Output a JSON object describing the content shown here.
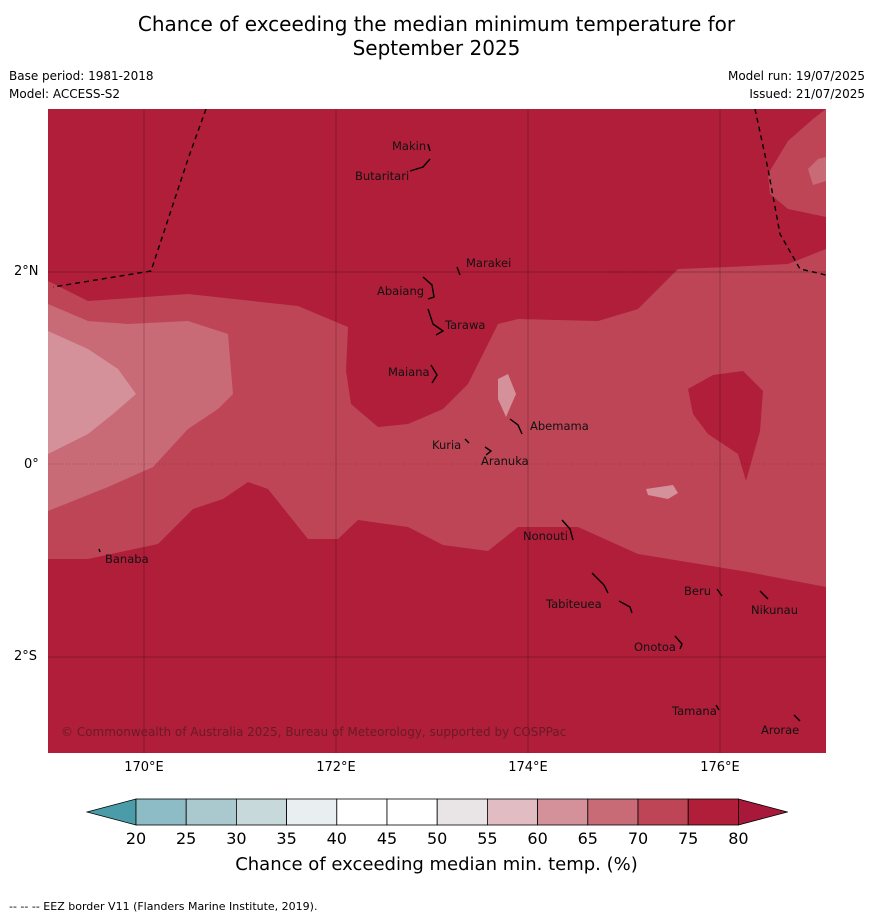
{
  "title_line1": "Chance of exceeding the median minimum temperature for",
  "title_line2": "September 2025",
  "meta": {
    "base_period": "Base period: 1981-2018",
    "model": "Model: ACCESS-S2",
    "model_run": "Model run: 19/07/2025",
    "issued": "Issued: 21/07/2025"
  },
  "axes": {
    "lat_labels": [
      "2°N",
      "0°",
      "2°S"
    ],
    "lon_labels": [
      "170°E",
      "172°E",
      "174°E",
      "176°E"
    ]
  },
  "places": [
    "Makin",
    "Butaritari",
    "Marakei",
    "Abaiang",
    "Tarawa",
    "Maiana",
    "Abemama",
    "Kuria",
    "Aranuka",
    "Nonouti",
    "Banaba",
    "Beru",
    "Nikunau",
    "Tabiteuea",
    "Onotoa",
    "Tamana",
    "Arorae"
  ],
  "copyright": "© Commonwealth of Australia 2025, Bureau of Meteorology, supported by COSPPac",
  "colorbar": {
    "labels": [
      "20",
      "25",
      "30",
      "35",
      "40",
      "45",
      "50",
      "55",
      "60",
      "65",
      "70",
      "75",
      "80"
    ],
    "colors": [
      "#6aacba",
      "#8dbcc7",
      "#aac9cf",
      "#c8d9dc",
      "#e9eef0",
      "#ffffff",
      "#ffffff",
      "#e9e5e6",
      "#e2bcc3",
      "#d4919a",
      "#c96a77",
      "#bd4556",
      "#b01e3a"
    ],
    "title": "Chance of exceeding median min. temp. (%)"
  },
  "footer": "--  --  -- EEZ border V11 (Flanders Marine Institute, 2019)."
}
